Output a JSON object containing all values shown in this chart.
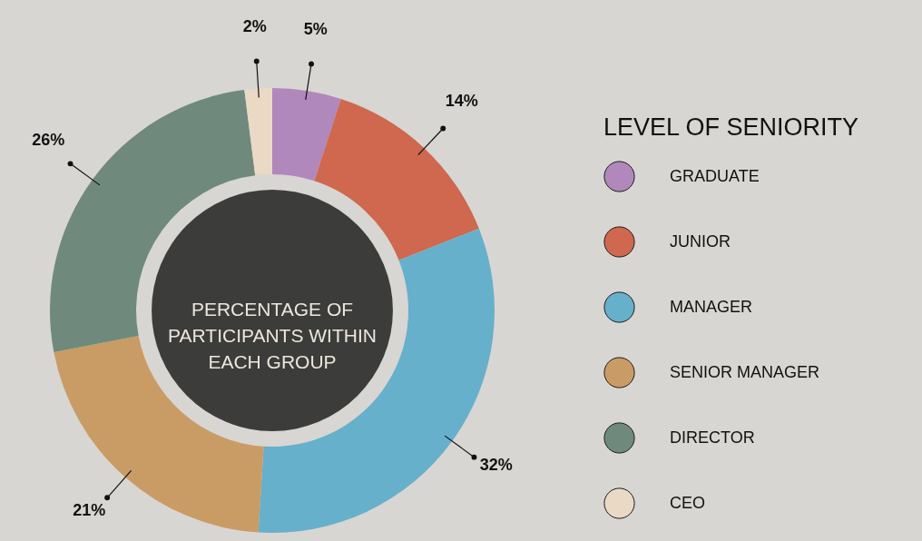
{
  "chart_data": {
    "type": "donut",
    "title": "PERCENTAGE OF PARTICIPANTS WITHIN EACH GROUP",
    "legend_title": "LEVEL OF SENIORITY",
    "categories": [
      "GRADUATE",
      "JUNIOR",
      "MANAGER",
      "SENIOR MANAGER",
      "DIRECTOR",
      "CEO"
    ],
    "values": [
      5,
      14,
      32,
      21,
      26,
      2
    ],
    "colors": [
      "#b088bb",
      "#cf684e",
      "#66b0cb",
      "#c99c65",
      "#6f8a7c",
      "#ead9c5"
    ],
    "value_labels": [
      "5%",
      "14%",
      "32%",
      "21%",
      "26%",
      "2%"
    ],
    "legend": "right"
  }
}
